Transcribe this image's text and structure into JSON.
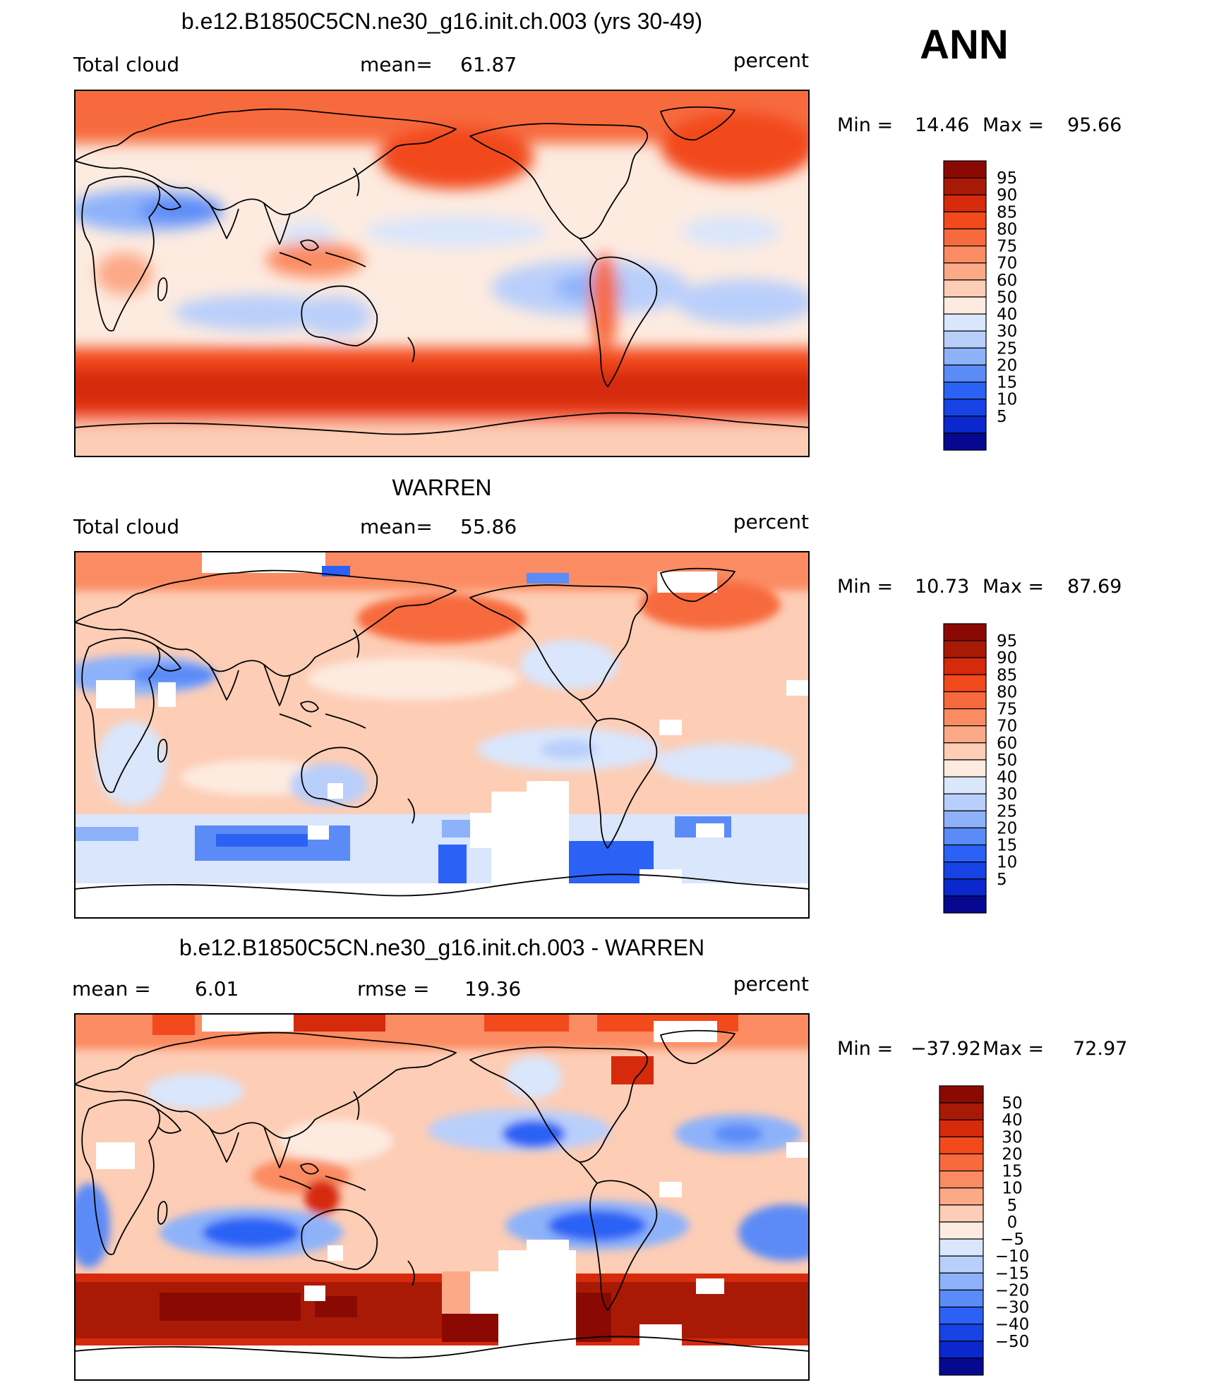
{
  "season": "ANN",
  "palettes": {
    "field": [
      "#06098f",
      "#0a28cd",
      "#1743e6",
      "#2b62f5",
      "#5b8bf7",
      "#8db2fa",
      "#b9cffb",
      "#d9e6fc",
      "#fdebe0",
      "#fdcdb5",
      "#fca987",
      "#fb8b62",
      "#f76a3d",
      "#f24a1c",
      "#d52a0c",
      "#a91a06",
      "#8a0a03"
    ],
    "diff": [
      "#06098f",
      "#0a28cd",
      "#1743e6",
      "#2b62f5",
      "#5b8bf7",
      "#8db2fa",
      "#b9cffb",
      "#d9e6fc",
      "#fdebe0",
      "#fdcdb5",
      "#fca987",
      "#fb8b62",
      "#f76a3d",
      "#f24a1c",
      "#d52a0c",
      "#a91a06",
      "#8a0a03"
    ]
  },
  "chart_data": [
    {
      "type": "heatmap",
      "title": "b.e12.B1850C5CN.ne30_g16.init.ch.003 (yrs 30-49)",
      "left_label": "Total cloud",
      "stat_label": "mean=",
      "stat_value": "61.87",
      "units": "percent",
      "min_label": "Min  =",
      "min_value": "14.46",
      "max_label": "Max  =",
      "max_value": "95.66",
      "colorbar_labels": [
        "95",
        "90",
        "85",
        "80",
        "75",
        "70",
        "60",
        "50",
        "40",
        "30",
        "25",
        "20",
        "15",
        "10",
        "5"
      ]
    },
    {
      "type": "heatmap",
      "title": "WARREN",
      "left_label": "Total cloud",
      "stat_label": "mean=",
      "stat_value": "55.86",
      "units": "percent",
      "min_label": "Min  =",
      "min_value": "10.73",
      "max_label": "Max  =",
      "max_value": "87.69",
      "colorbar_labels": [
        "95",
        "90",
        "85",
        "80",
        "75",
        "70",
        "60",
        "50",
        "40",
        "30",
        "25",
        "20",
        "15",
        "10",
        "5"
      ]
    },
    {
      "type": "heatmap",
      "title": "b.e12.B1850C5CN.ne30_g16.init.ch.003 - WARREN",
      "left_label": "mean  =",
      "left_value": "6.01",
      "stat_label": "rmse  =",
      "stat_value": "19.36",
      "units": "percent",
      "min_label": "Min  =",
      "min_value": "−37.92",
      "max_label": "Max  =",
      "max_value": "72.97",
      "colorbar_labels": [
        "50",
        "40",
        "30",
        "20",
        "15",
        "10",
        "5",
        "0",
        "−5",
        "−10",
        "−15",
        "−20",
        "−30",
        "−40",
        "−50"
      ]
    }
  ]
}
